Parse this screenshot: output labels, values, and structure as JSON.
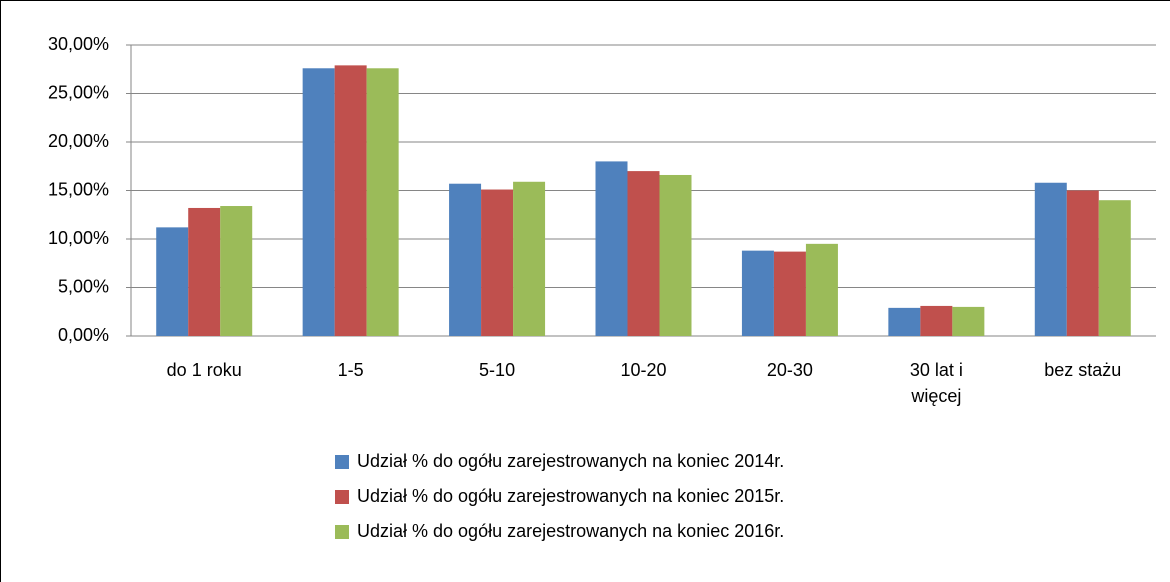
{
  "chart_data": {
    "type": "bar",
    "categories": [
      "do 1 roku",
      "1-5",
      "5-10",
      "10-20",
      "20-30",
      "30 lat i więcej",
      "bez stażu"
    ],
    "series": [
      {
        "name": "Udział % do ogółu zarejestrowanych na koniec 2014r.",
        "color": "#4f81bd",
        "values": [
          11.2,
          27.6,
          15.7,
          18.0,
          8.8,
          2.9,
          15.8
        ]
      },
      {
        "name": "Udział % do ogółu zarejestrowanych na koniec 2015r.",
        "color": "#c0504d",
        "values": [
          13.2,
          27.9,
          15.1,
          17.0,
          8.7,
          3.1,
          15.0
        ]
      },
      {
        "name": "Udział % do ogółu zarejestrowanych na koniec 2016r.",
        "color": "#9bbb59",
        "values": [
          13.4,
          27.6,
          15.9,
          16.6,
          9.5,
          3.0,
          14.0
        ]
      }
    ],
    "ylim": [
      0,
      30
    ],
    "yticks": [
      {
        "value": 0,
        "label": "0,00%"
      },
      {
        "value": 5,
        "label": "5,00%"
      },
      {
        "value": 10,
        "label": "10,00%"
      },
      {
        "value": 15,
        "label": "15,00%"
      },
      {
        "value": 20,
        "label": "20,00%"
      },
      {
        "value": 25,
        "label": "25,00%"
      },
      {
        "value": 30,
        "label": "30,00%"
      }
    ],
    "grid": true,
    "legend": "bottom"
  }
}
